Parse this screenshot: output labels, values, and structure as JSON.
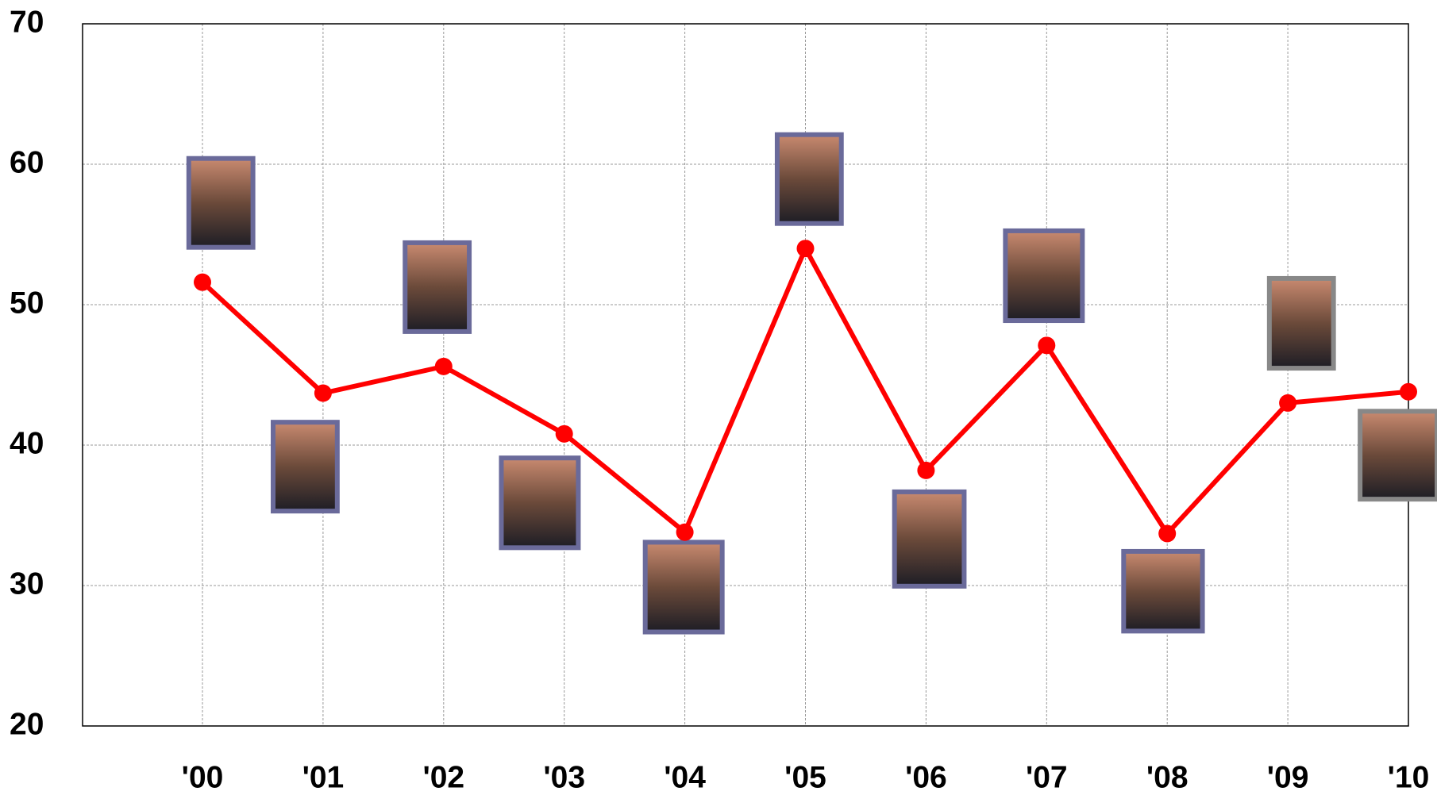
{
  "chart_data": {
    "type": "line",
    "categories": [
      "'00",
      "'01",
      "'02",
      "'03",
      "'04",
      "'05",
      "'06",
      "'07",
      "'08",
      "'09",
      "'10"
    ],
    "series": [
      {
        "color": "#ff0000",
        "values": [
          51.6,
          43.7,
          45.6,
          40.8,
          33.8,
          54.0,
          38.2,
          47.1,
          33.7,
          43.0,
          43.8
        ]
      }
    ],
    "ylim": [
      20,
      70
    ],
    "yticks": [
      20,
      30,
      40,
      50,
      60,
      70
    ],
    "grid": true
  }
}
